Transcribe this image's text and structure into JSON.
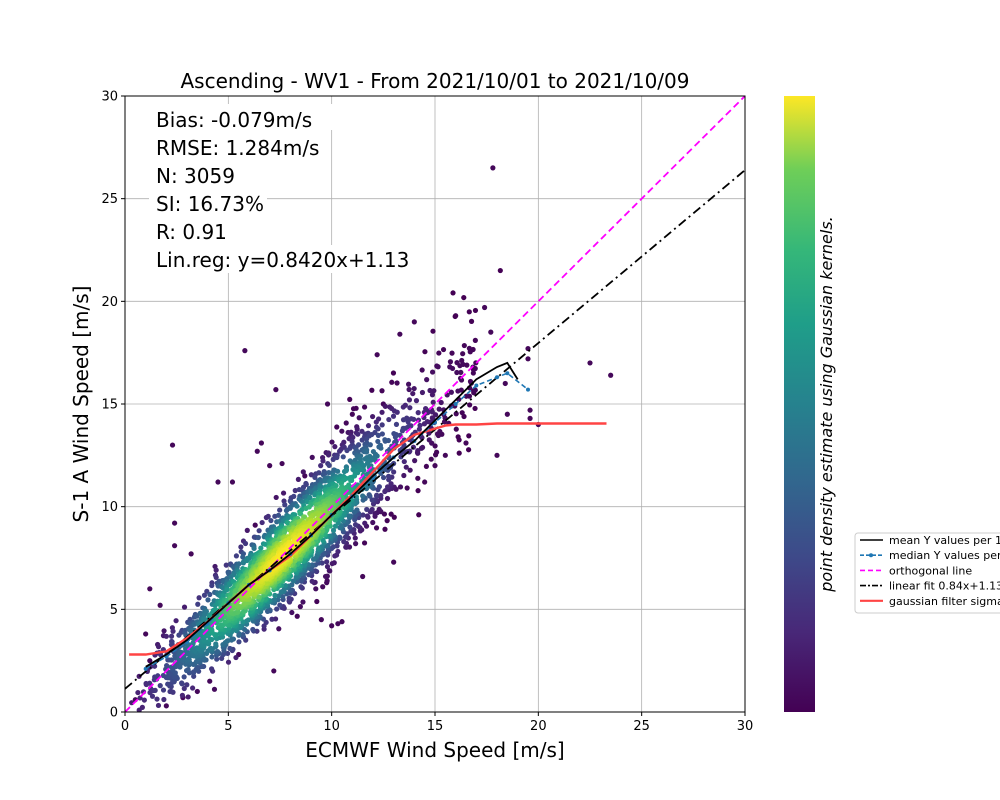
{
  "chart_data": {
    "type": "scatter",
    "title": "Ascending - WV1 - From 2021/10/01 to 2021/10/09",
    "xlabel": "ECMWF Wind Speed [m/s]",
    "ylabel": "S-1 A Wind Speed [m/s]",
    "xlim": [
      0,
      30
    ],
    "ylim": [
      0,
      30
    ],
    "xticks": [
      "0",
      "5",
      "10",
      "15",
      "20",
      "25",
      "30"
    ],
    "yticks": [
      "0",
      "5",
      "10",
      "15",
      "20",
      "25",
      "30"
    ],
    "grid": true,
    "stats": [
      "Bias: -0.079m/s",
      "RMSE: 1.284m/s",
      "N: 3059",
      "SI: 16.73%",
      "R: 0.91",
      "Lin.reg: y=0.8420x+1.13"
    ],
    "colorbar_label": "point density estimate using Gaussian kernels.",
    "colormap": "viridis",
    "legend_position": "right, outside plot (clipped)",
    "legend": [
      {
        "label": "mean Y values per 1",
        "color": "#000000",
        "style": "solid"
      },
      {
        "label": "median Y values per",
        "color": "#1f77b4",
        "style": "dashed-markers"
      },
      {
        "label": "orthogonal line",
        "color": "#ff00ff",
        "style": "dashed"
      },
      {
        "label": "linear fit 0.84x+1.13",
        "color": "#000000",
        "style": "dashdot"
      },
      {
        "label": "gaussian filter sigma",
        "color": "#ff4444",
        "style": "solid"
      }
    ],
    "series": [
      {
        "name": "mean Y values per 1",
        "color": "#000000",
        "x": [
          1.0,
          2.0,
          3.0,
          4.0,
          5.0,
          6.0,
          7.0,
          8.0,
          9.0,
          10.0,
          11.0,
          12.0,
          13.0,
          14.0,
          15.0,
          16.0,
          17.0,
          18.0,
          18.5,
          19.0
        ],
        "y": [
          2.2,
          2.8,
          3.5,
          4.4,
          5.3,
          6.2,
          6.9,
          7.7,
          8.6,
          9.6,
          10.5,
          11.5,
          12.4,
          13.2,
          14.2,
          15.2,
          16.2,
          16.8,
          17.0,
          16.2
        ]
      },
      {
        "name": "median Y values per",
        "color": "#1f77b4",
        "x": [
          1.0,
          2.0,
          3.0,
          4.0,
          5.0,
          6.0,
          7.0,
          8.0,
          9.0,
          10.0,
          11.0,
          12.0,
          13.0,
          14.0,
          15.0,
          16.0,
          17.0,
          18.0,
          18.5,
          19.5
        ],
        "y": [
          2.1,
          2.7,
          3.4,
          4.3,
          5.3,
          6.2,
          6.9,
          7.7,
          8.6,
          9.6,
          10.5,
          11.4,
          12.4,
          13.2,
          14.1,
          15.0,
          15.9,
          16.3,
          16.5,
          15.7
        ]
      },
      {
        "name": "orthogonal line",
        "color": "#ff00ff",
        "x": [
          0,
          30
        ],
        "y": [
          0,
          30
        ]
      },
      {
        "name": "linear fit 0.84x+1.13",
        "color": "#000000",
        "x": [
          0,
          30
        ],
        "y": [
          1.13,
          26.39
        ]
      },
      {
        "name": "gaussian filter sigma",
        "color": "#ff4444",
        "x": [
          0.2,
          1.0,
          2.0,
          3.0,
          4.0,
          5.0,
          6.0,
          7.0,
          8.0,
          9.0,
          10.0,
          11.0,
          12.0,
          13.0,
          14.0,
          15.0,
          15.5,
          16.0,
          17.0,
          18.0,
          20.0,
          22.0,
          23.3
        ],
        "y": [
          2.8,
          2.8,
          2.95,
          3.6,
          4.4,
          5.3,
          6.2,
          6.9,
          7.6,
          8.6,
          9.6,
          10.6,
          11.7,
          12.8,
          13.5,
          13.8,
          13.95,
          14.0,
          14.0,
          14.05,
          14.05,
          14.05,
          14.05
        ]
      }
    ],
    "outliers": [
      [
        0.5,
        0.6
      ],
      [
        1.2,
        6.0
      ],
      [
        1.7,
        5.2
      ],
      [
        2.3,
        13.0
      ],
      [
        2.4,
        9.2
      ],
      [
        2.4,
        8.1
      ],
      [
        3.2,
        7.7
      ],
      [
        4.5,
        11.2
      ],
      [
        5.2,
        11.2
      ],
      [
        5.8,
        17.6
      ],
      [
        6.4,
        12.7
      ],
      [
        7.0,
        12.0
      ],
      [
        7.3,
        15.7
      ],
      [
        7.6,
        12.1
      ],
      [
        6.3,
        9.1
      ],
      [
        9.8,
        15.0
      ],
      [
        12.2,
        17.4
      ],
      [
        13.3,
        18.4
      ],
      [
        14.0,
        19.0
      ],
      [
        16.0,
        19.3
      ],
      [
        17.4,
        19.7
      ],
      [
        17.8,
        26.5
      ],
      [
        17.7,
        18.5
      ],
      [
        18.4,
        16.0
      ],
      [
        19.5,
        17.2
      ],
      [
        19.5,
        17.7
      ],
      [
        20.0,
        14.0
      ],
      [
        19.6,
        14.3
      ],
      [
        19.6,
        14.7
      ],
      [
        22.5,
        17.0
      ],
      [
        23.5,
        16.4
      ],
      [
        18.0,
        12.5
      ],
      [
        16.5,
        13.1
      ],
      [
        15.0,
        12.0
      ],
      [
        13.0,
        7.3
      ],
      [
        11.5,
        6.6
      ],
      [
        10.0,
        4.2
      ],
      [
        9.5,
        4.5
      ],
      [
        10.3,
        4.3
      ],
      [
        10.5,
        4.4
      ],
      [
        7.2,
        2.0
      ],
      [
        5.5,
        2.8
      ],
      [
        4.1,
        1.5
      ],
      [
        3.5,
        1.0
      ],
      [
        2.0,
        0.3
      ],
      [
        2.8,
        0.7
      ],
      [
        1.2,
        2.5
      ],
      [
        1.0,
        3.8
      ],
      [
        14.5,
        11.2
      ],
      [
        15.5,
        12.5
      ],
      [
        18.5,
        14.5
      ],
      [
        12.5,
        15.0
      ],
      [
        8.5,
        10.5
      ],
      [
        8.7,
        11.5
      ],
      [
        6.6,
        13.1
      ],
      [
        11.0,
        14.5
      ]
    ]
  }
}
